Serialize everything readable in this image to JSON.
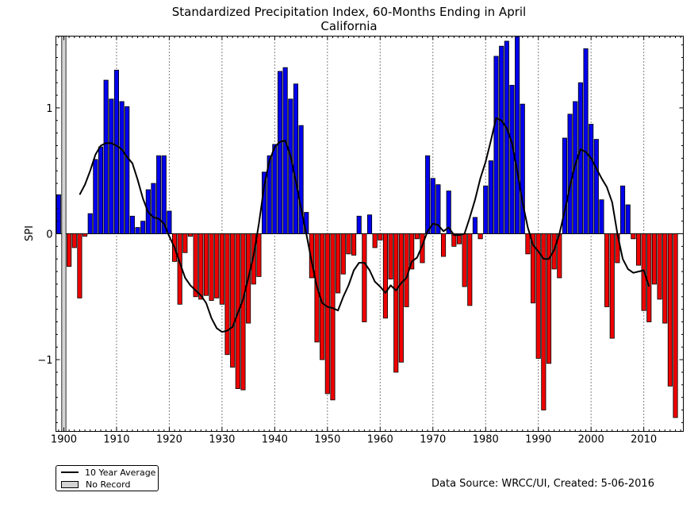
{
  "title": {
    "line1": "Standardized Precipitation Index, 60-Months Ending in April",
    "line2": "California"
  },
  "legend": {
    "average_label": "10 Year Average",
    "no_record_label": "No Record"
  },
  "source": "Data Source: WRCC/UI, Created: 5-06-2016",
  "colors": {
    "positive": "#0000ee",
    "negative": "#ee0000",
    "average": "#000000",
    "no_record": "#d3d3d3"
  },
  "chart_data": {
    "type": "bar",
    "title": "Standardized Precipitation Index, 60-Months Ending in April",
    "subtitle": "California",
    "xlabel": "",
    "ylabel": "SPI",
    "xlim": [
      1898.5,
      2017.5
    ],
    "ylim": [
      -1.57,
      1.57
    ],
    "yticks": [
      -1,
      0,
      1
    ],
    "ytick_labels": [
      "−1",
      "0",
      "1"
    ],
    "xticks": [
      1900,
      1910,
      1920,
      1930,
      1940,
      1950,
      1960,
      1970,
      1980,
      1990,
      2000,
      2010
    ],
    "grid": "vertical dotted",
    "legend_position": "bottom-left",
    "no_record_years": [
      1900
    ],
    "years": [
      1899,
      1900,
      1901,
      1902,
      1903,
      1904,
      1905,
      1906,
      1907,
      1908,
      1909,
      1910,
      1911,
      1912,
      1913,
      1914,
      1915,
      1916,
      1917,
      1918,
      1919,
      1920,
      1921,
      1922,
      1923,
      1924,
      1925,
      1926,
      1927,
      1928,
      1929,
      1930,
      1931,
      1932,
      1933,
      1934,
      1935,
      1936,
      1937,
      1938,
      1939,
      1940,
      1941,
      1942,
      1943,
      1944,
      1945,
      1946,
      1947,
      1948,
      1949,
      1950,
      1951,
      1952,
      1953,
      1954,
      1955,
      1956,
      1957,
      1958,
      1959,
      1960,
      1961,
      1962,
      1963,
      1964,
      1965,
      1966,
      1967,
      1968,
      1969,
      1970,
      1971,
      1972,
      1973,
      1974,
      1975,
      1976,
      1977,
      1978,
      1979,
      1980,
      1981,
      1982,
      1983,
      1984,
      1985,
      1986,
      1987,
      1988,
      1989,
      1990,
      1991,
      1992,
      1993,
      1994,
      1995,
      1996,
      1997,
      1998,
      1999,
      2000,
      2001,
      2002,
      2003,
      2004,
      2005,
      2006,
      2007,
      2008,
      2009,
      2010,
      2011,
      2012,
      2013,
      2014,
      2015,
      2016
    ],
    "spi": [
      0.31,
      0,
      -0.26,
      -0.11,
      -0.51,
      -0.02,
      0.16,
      0.59,
      0.69,
      1.22,
      1.07,
      1.3,
      1.05,
      1.01,
      0.14,
      0.05,
      0.1,
      0.35,
      0.4,
      0.62,
      0.62,
      0.18,
      -0.22,
      -0.56,
      -0.15,
      -0.02,
      -0.5,
      -0.52,
      -0.49,
      -0.53,
      -0.51,
      -0.56,
      -0.96,
      -1.06,
      -1.23,
      -1.24,
      -0.71,
      -0.4,
      -0.34,
      0.49,
      0.62,
      0.71,
      1.29,
      1.32,
      1.07,
      1.19,
      0.86,
      0.17,
      -0.35,
      -0.86,
      -1.0,
      -1.27,
      -1.32,
      -0.47,
      -0.32,
      -0.16,
      -0.17,
      0.14,
      -0.7,
      0.15,
      -0.11,
      -0.05,
      -0.67,
      -0.36,
      -1.1,
      -1.02,
      -0.58,
      -0.28,
      -0.04,
      -0.23,
      0.62,
      0.44,
      0.39,
      -0.18,
      0.34,
      -0.1,
      -0.08,
      -0.42,
      -0.57,
      0.13,
      -0.04,
      0.38,
      0.58,
      1.41,
      1.49,
      1.53,
      1.18,
      1.57,
      1.03,
      -0.16,
      -0.55,
      -0.99,
      -1.4,
      -1.03,
      -0.28,
      -0.35,
      0.76,
      0.95,
      1.05,
      1.2,
      1.47,
      0.87,
      0.75,
      0.27,
      -0.58,
      -0.83,
      -0.23,
      0.38,
      0.23,
      -0.04,
      -0.25,
      -0.61,
      -0.7,
      -0.4,
      -0.52,
      -0.71,
      -1.21,
      -1.46
    ],
    "series": [
      {
        "name": "10 Year Average",
        "x": [
          1903,
          1904,
          1905,
          1906,
          1907,
          1908,
          1909,
          1910,
          1911,
          1912,
          1913,
          1914,
          1915,
          1916,
          1917,
          1918,
          1919,
          1920,
          1921,
          1922,
          1923,
          1924,
          1925,
          1926,
          1927,
          1928,
          1929,
          1930,
          1931,
          1932,
          1933,
          1934,
          1935,
          1936,
          1937,
          1938,
          1939,
          1940,
          1941,
          1942,
          1943,
          1944,
          1945,
          1946,
          1947,
          1948,
          1949,
          1950,
          1951,
          1952,
          1953,
          1954,
          1955,
          1956,
          1957,
          1958,
          1959,
          1960,
          1961,
          1962,
          1963,
          1964,
          1965,
          1966,
          1967,
          1968,
          1969,
          1970,
          1971,
          1972,
          1973,
          1974,
          1975,
          1976,
          1977,
          1978,
          1979,
          1980,
          1981,
          1982,
          1983,
          1984,
          1985,
          1986,
          1987,
          1988,
          1989,
          1990,
          1991,
          1992,
          1993,
          1994,
          1995,
          1996,
          1997,
          1998,
          1999,
          2000,
          2001,
          2002,
          2003,
          2004,
          2005,
          2006,
          2007,
          2008,
          2009,
          2010,
          2011
        ],
        "values": [
          0.31,
          0.39,
          0.5,
          0.63,
          0.7,
          0.72,
          0.72,
          0.7,
          0.67,
          0.61,
          0.56,
          0.43,
          0.28,
          0.17,
          0.13,
          0.12,
          0.08,
          -0.02,
          -0.11,
          -0.23,
          -0.35,
          -0.41,
          -0.45,
          -0.49,
          -0.55,
          -0.67,
          -0.75,
          -0.78,
          -0.77,
          -0.74,
          -0.63,
          -0.52,
          -0.35,
          -0.17,
          0.08,
          0.38,
          0.58,
          0.69,
          0.73,
          0.74,
          0.62,
          0.42,
          0.2,
          0.0,
          -0.22,
          -0.42,
          -0.55,
          -0.58,
          -0.59,
          -0.61,
          -0.5,
          -0.41,
          -0.29,
          -0.23,
          -0.23,
          -0.29,
          -0.38,
          -0.42,
          -0.47,
          -0.41,
          -0.45,
          -0.39,
          -0.35,
          -0.22,
          -0.19,
          -0.09,
          0.02,
          0.08,
          0.07,
          0.02,
          0.05,
          -0.01,
          -0.01,
          0.0,
          0.13,
          0.27,
          0.44,
          0.57,
          0.74,
          0.92,
          0.9,
          0.84,
          0.72,
          0.5,
          0.25,
          0.05,
          -0.09,
          -0.14,
          -0.2,
          -0.2,
          -0.13,
          0.0,
          0.18,
          0.38,
          0.55,
          0.67,
          0.65,
          0.6,
          0.52,
          0.44,
          0.37,
          0.25,
          0.0,
          -0.2,
          -0.28,
          -0.31,
          -0.3,
          -0.29,
          -0.42
        ]
      }
    ]
  }
}
